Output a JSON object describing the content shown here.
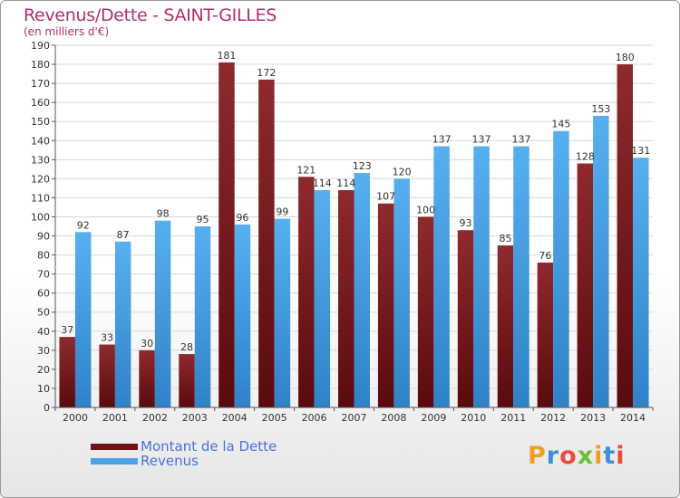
{
  "title": "Revenus/Dette - SAINT-GILLES",
  "subtitle": "(en milliers d'€)",
  "colors": {
    "title": "#b0306a",
    "debt": "#7a1e22",
    "revenue": "#4aa3e6",
    "legend_text": "#4a6fe0"
  },
  "legend": {
    "debt_label": "Montant de la Dette",
    "revenue_label": "Revenus"
  },
  "logo": {
    "text": "Proxiti"
  },
  "chart_data": {
    "type": "bar",
    "title": "Revenus/Dette - SAINT-GILLES",
    "subtitle": "(en milliers d'€)",
    "categories": [
      "2000",
      "2001",
      "2002",
      "2003",
      "2004",
      "2005",
      "2006",
      "2007",
      "2008",
      "2009",
      "2010",
      "2011",
      "2012",
      "2013",
      "2014"
    ],
    "series": [
      {
        "name": "Montant de la Dette",
        "values": [
          37,
          33,
          30,
          28,
          181,
          172,
          121,
          114,
          107,
          100,
          93,
          85,
          76,
          128,
          180
        ]
      },
      {
        "name": "Revenus",
        "values": [
          92,
          87,
          98,
          95,
          96,
          99,
          114,
          123,
          120,
          137,
          137,
          137,
          145,
          153,
          131
        ]
      }
    ],
    "ylim": [
      0,
      190
    ],
    "yticks": [
      0,
      10,
      20,
      30,
      40,
      50,
      60,
      70,
      80,
      90,
      100,
      110,
      120,
      130,
      140,
      150,
      160,
      170,
      180,
      190
    ],
    "grid": true,
    "legend_position": "bottom-left"
  }
}
